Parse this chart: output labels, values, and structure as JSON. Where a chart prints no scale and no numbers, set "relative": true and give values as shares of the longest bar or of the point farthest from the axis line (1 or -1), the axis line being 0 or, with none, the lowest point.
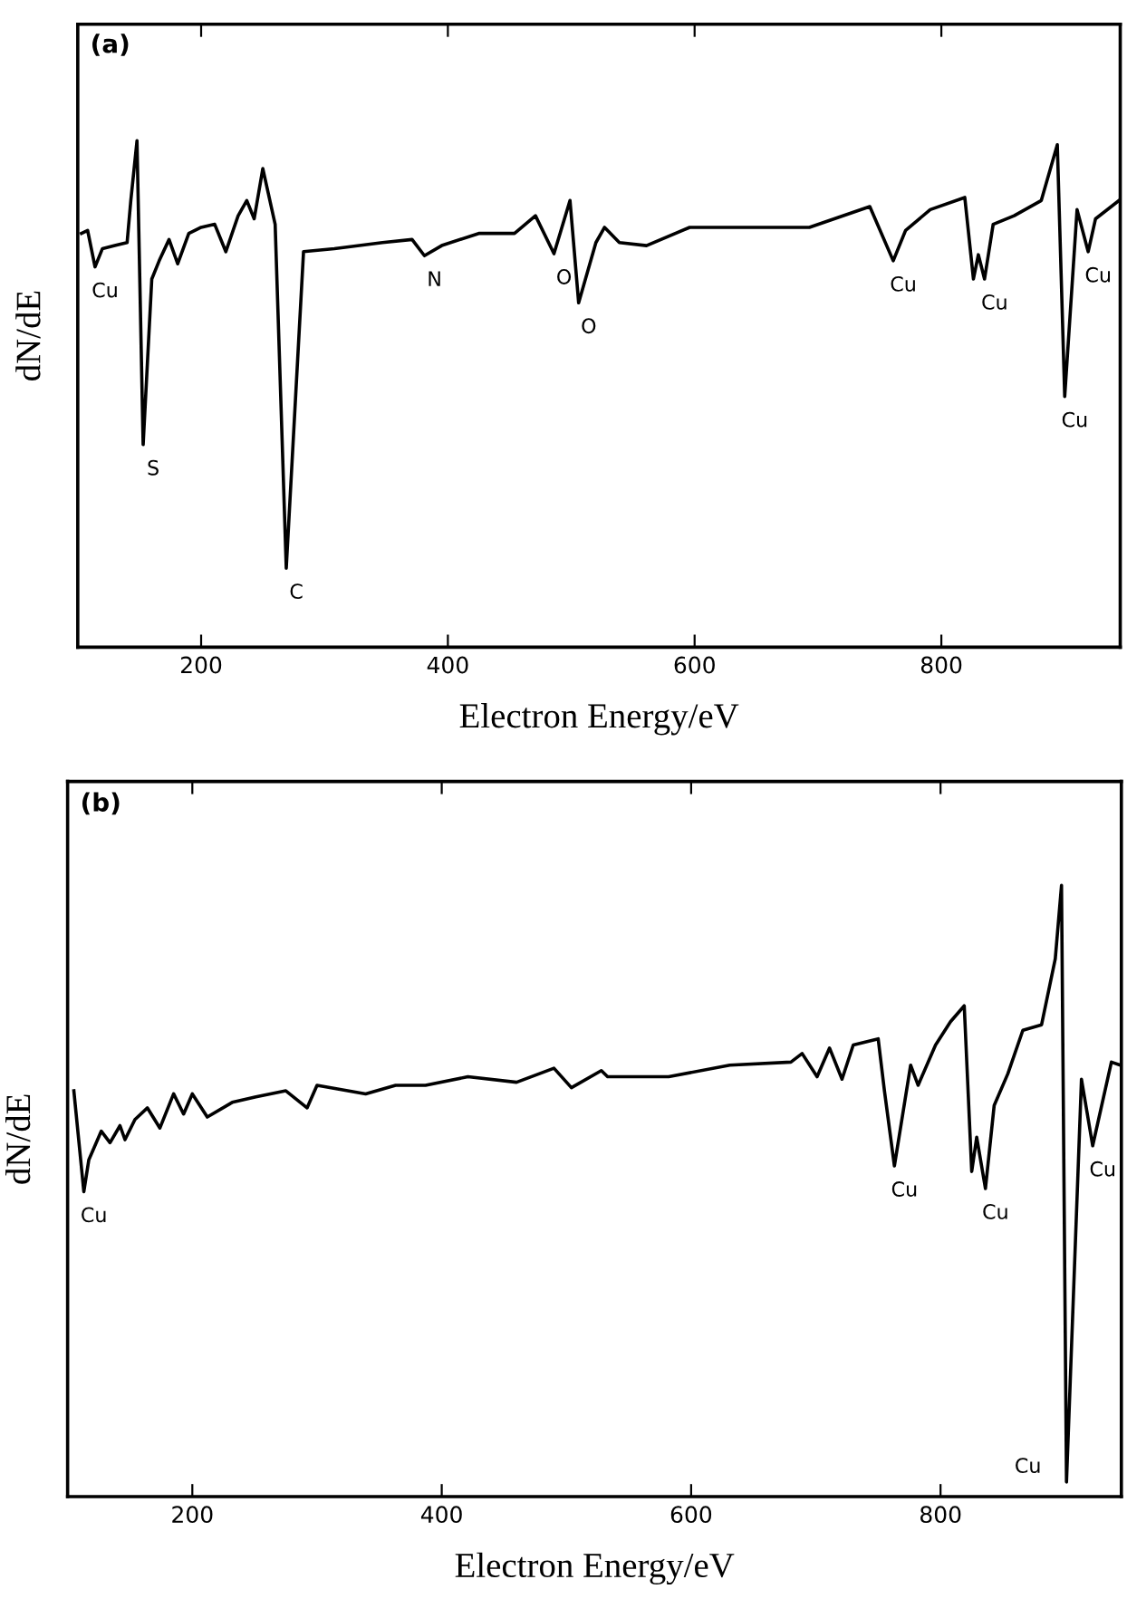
{
  "chart_data": [
    {
      "type": "line",
      "title": "(a)",
      "xlabel": "Electron Energy/eV",
      "ylabel": "dN/dE",
      "relative": true,
      "xlim": [
        100,
        945
      ],
      "xticks": [
        200,
        400,
        600,
        800
      ],
      "grid": false,
      "marker": "none",
      "line_style": "solid",
      "series": [
        {
          "color": "#000000",
          "x": [
            103,
            108,
            114,
            120,
            130,
            140,
            143,
            148,
            153,
            160,
            166,
            174,
            181,
            190,
            200,
            211,
            220,
            230,
            237,
            243,
            250,
            260,
            269,
            283,
            308,
            347,
            371,
            381,
            395,
            425,
            454,
            471,
            486,
            499,
            506,
            520,
            527,
            539,
            561,
            596,
            644,
            693,
            742,
            761,
            771,
            791,
            819,
            826,
            830,
            835,
            842,
            859,
            881,
            894,
            900,
            910,
            919,
            925,
            944
          ],
          "values": [
            0.817,
            0.823,
            0.751,
            0.787,
            0.793,
            0.799,
            0.882,
            1.0,
            0.4,
            0.727,
            0.763,
            0.805,
            0.757,
            0.817,
            0.829,
            0.835,
            0.781,
            0.852,
            0.882,
            0.846,
            0.945,
            0.835,
            0.156,
            0.781,
            0.787,
            0.799,
            0.805,
            0.773,
            0.793,
            0.817,
            0.817,
            0.852,
            0.777,
            0.882,
            0.68,
            0.799,
            0.829,
            0.799,
            0.793,
            0.829,
            0.829,
            0.829,
            0.87,
            0.763,
            0.823,
            0.864,
            0.888,
            0.727,
            0.775,
            0.727,
            0.835,
            0.852,
            0.882,
            0.992,
            0.495,
            0.864,
            0.781,
            0.846,
            0.882
          ]
        }
      ],
      "annotations": [
        {
          "text": "Cu",
          "x": 114,
          "y": 0.751
        },
        {
          "text": "S",
          "x": 153,
          "y": 0.4
        },
        {
          "text": "C",
          "x": 269,
          "y": 0.156
        },
        {
          "text": "N",
          "x": 381,
          "y": 0.773
        },
        {
          "text": "O",
          "x": 486,
          "y": 0.777
        },
        {
          "text": "O",
          "x": 506,
          "y": 0.68
        },
        {
          "text": "Cu",
          "x": 761,
          "y": 0.763
        },
        {
          "text": "Cu",
          "x": 835,
          "y": 0.727
        },
        {
          "text": "Cu",
          "x": 900,
          "y": 0.495
        },
        {
          "text": "Cu",
          "x": 919,
          "y": 0.781
        }
      ]
    },
    {
      "type": "line",
      "title": "(b)",
      "xlabel": "Electron Energy/eV",
      "ylabel": "dN/dE",
      "relative": true,
      "xlim": [
        100,
        945
      ],
      "xticks": [
        200,
        400,
        600,
        800
      ],
      "grid": false,
      "marker": "none",
      "line_style": "solid",
      "series": [
        {
          "color": "#000000",
          "x": [
            105,
            113,
            117,
            127,
            134,
            142,
            146,
            154,
            164,
            174,
            185,
            193,
            200,
            212,
            232,
            251,
            275,
            292,
            300,
            339,
            363,
            387,
            421,
            460,
            490,
            504,
            528,
            533,
            582,
            631,
            680,
            689,
            701,
            711,
            721,
            730,
            750,
            755,
            763,
            776,
            782,
            796,
            808,
            819,
            825,
            829,
            836,
            843,
            854,
            866,
            881,
            892,
            897,
            901,
            913,
            922,
            937,
            944
          ],
          "values": [
            0.664,
            0.499,
            0.551,
            0.598,
            0.579,
            0.607,
            0.584,
            0.617,
            0.636,
            0.603,
            0.659,
            0.626,
            0.659,
            0.621,
            0.645,
            0.654,
            0.664,
            0.636,
            0.673,
            0.659,
            0.673,
            0.673,
            0.687,
            0.678,
            0.701,
            0.669,
            0.697,
            0.687,
            0.687,
            0.706,
            0.711,
            0.725,
            0.687,
            0.734,
            0.683,
            0.739,
            0.749,
            0.664,
            0.541,
            0.706,
            0.673,
            0.739,
            0.777,
            0.803,
            0.532,
            0.588,
            0.504,
            0.64,
            0.692,
            0.763,
            0.772,
            0.88,
            1.0,
            0.024,
            0.683,
            0.574,
            0.711,
            0.706
          ]
        }
      ],
      "annotations": [
        {
          "text": "Cu",
          "x": 113,
          "y": 0.499
        },
        {
          "text": "Cu",
          "x": 763,
          "y": 0.541
        },
        {
          "text": "Cu",
          "x": 836,
          "y": 0.504
        },
        {
          "text": "Cu",
          "x": 901,
          "y": 0.024
        },
        {
          "text": "Cu",
          "x": 922,
          "y": 0.574
        }
      ]
    }
  ]
}
